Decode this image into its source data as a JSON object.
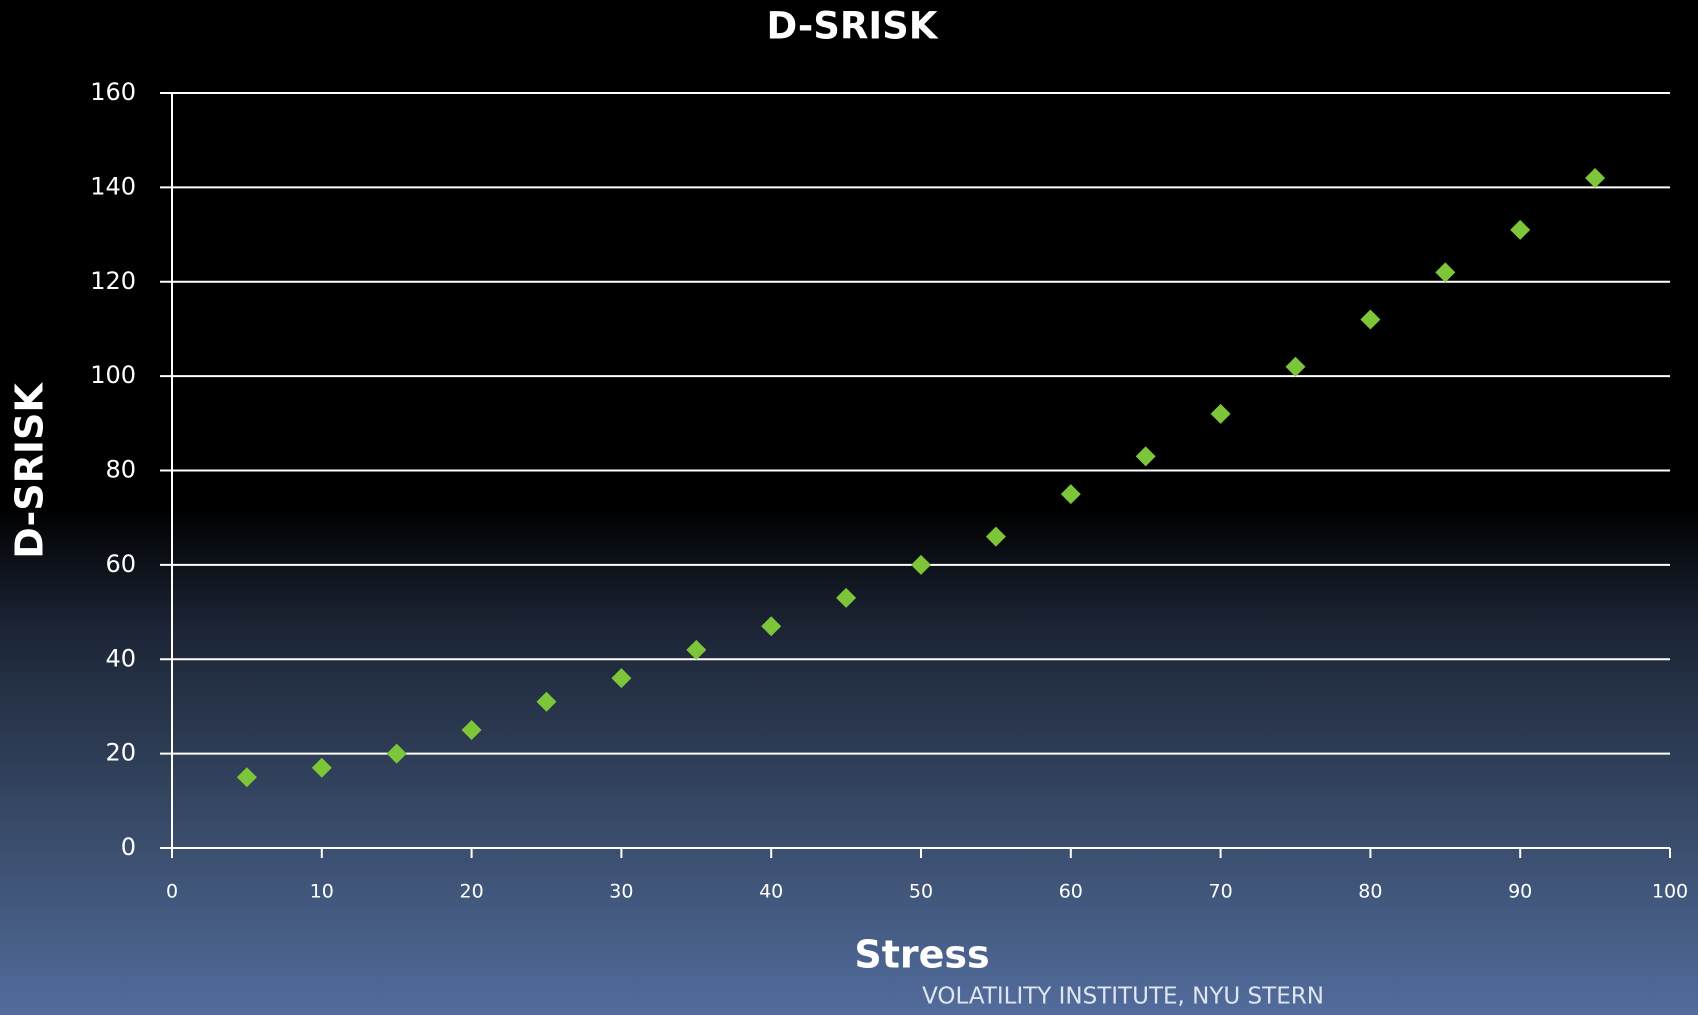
{
  "chart_data": {
    "type": "scatter",
    "title": "D-SRISK",
    "x_label": "Stress",
    "y_label": "D-SRISK",
    "x": [
      5,
      10,
      15,
      20,
      25,
      30,
      35,
      40,
      45,
      50,
      55,
      60,
      65,
      70,
      75,
      80,
      85,
      90,
      95
    ],
    "values": [
      15,
      17,
      20,
      25,
      31,
      36,
      42,
      47,
      53,
      60,
      66,
      75,
      83,
      92,
      102,
      112,
      122,
      131,
      142
    ],
    "color": "#7dc63a",
    "xlim": [
      0,
      100
    ],
    "xticks": [
      0,
      10,
      20,
      30,
      40,
      50,
      60,
      70,
      80,
      90,
      100
    ],
    "ylim": [
      0,
      160
    ],
    "yticks": [
      0,
      20,
      40,
      60,
      80,
      100,
      120,
      140,
      160
    ],
    "grid": true
  },
  "footer": "VOLATILITY INSTITUTE, NYU STERN"
}
